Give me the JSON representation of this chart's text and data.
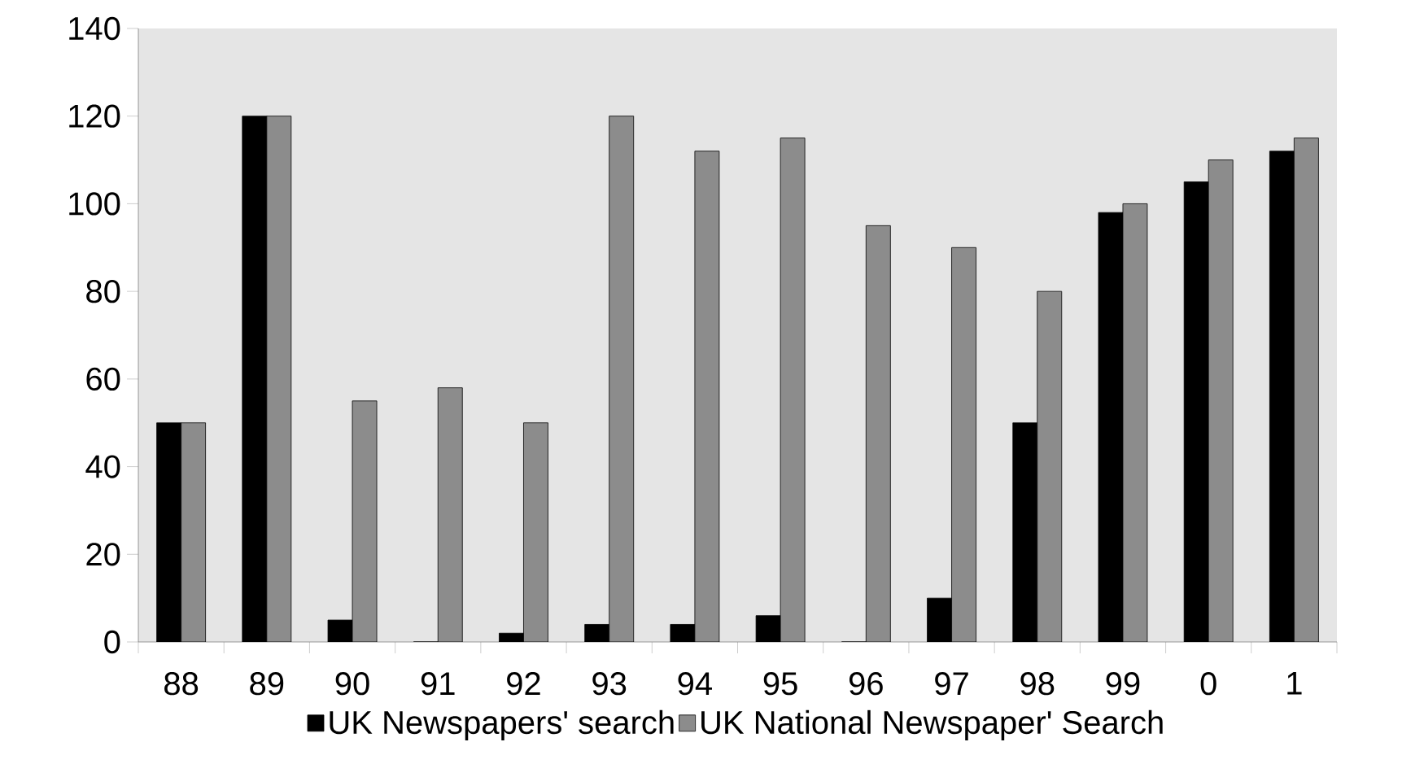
{
  "chart_data": {
    "type": "bar",
    "categories": [
      "88",
      "89",
      "90",
      "91",
      "92",
      "93",
      "94",
      "95",
      "96",
      "97",
      "98",
      "99",
      "0",
      "1"
    ],
    "series": [
      {
        "name": "UK Newspapers' search",
        "color": "#000000",
        "values": [
          50,
          120,
          5,
          0,
          2,
          4,
          4,
          6,
          0,
          10,
          50,
          98,
          105,
          112
        ]
      },
      {
        "name": "UK National Newspaper' Search",
        "color": "#8c8c8c",
        "values": [
          50,
          120,
          55,
          58,
          50,
          120,
          112,
          115,
          95,
          90,
          80,
          100,
          110,
          115
        ]
      }
    ],
    "ylim": [
      0,
      140
    ],
    "yticks": [
      0,
      20,
      40,
      60,
      80,
      100,
      120,
      140
    ],
    "grid": false,
    "legend": "bottom"
  }
}
